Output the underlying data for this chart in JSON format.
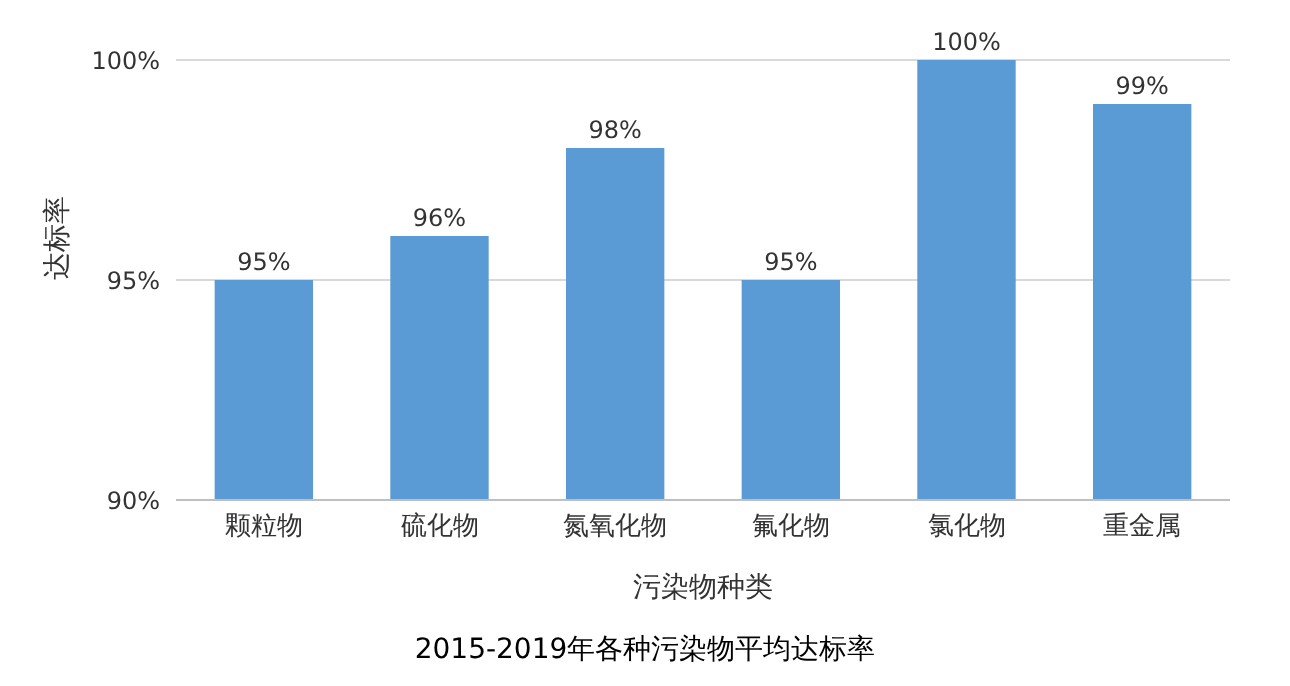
{
  "chart_data": {
    "type": "bar",
    "title": "2015-2019年各种污染物平均达标率",
    "xlabel": "污染物种类",
    "ylabel": "达标率",
    "categories": [
      "颗粒物",
      "硫化物",
      "氮氧化物",
      "氟化物",
      "氯化物",
      "重金属"
    ],
    "values": [
      95,
      96,
      98,
      95,
      100,
      99
    ],
    "value_labels": [
      "95%",
      "96%",
      "98%",
      "95%",
      "100%",
      "99%"
    ],
    "color": "#5b9bd5",
    "ylim": [
      90,
      100
    ],
    "yticks": [
      {
        "value": 90,
        "label": "90%"
      },
      {
        "value": 95,
        "label": "95%"
      },
      {
        "value": 100,
        "label": "100%"
      }
    ],
    "grid": "y",
    "legend": false
  }
}
